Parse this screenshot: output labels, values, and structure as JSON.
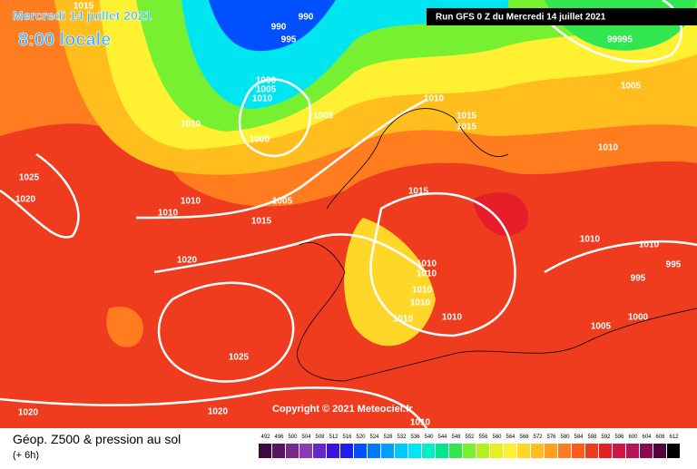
{
  "header": {
    "date": "Mercredi 14 juillet 2021",
    "time": "8:00 locale",
    "run": "Run GFS 0 Z du Mercredi 14 juillet 2021"
  },
  "isobar_labels": [
    1015,
    990,
    990,
    995,
    99995,
    1000,
    1005,
    1010,
    1005,
    1005,
    1010,
    1015,
    1015,
    1010,
    1000,
    1010,
    1025,
    1020,
    1015,
    1010,
    1010,
    1005,
    1015,
    1010,
    1010,
    1020,
    995,
    1010,
    1010,
    995,
    1010,
    1010,
    1010,
    1010,
    1000,
    1005,
    1025,
    1020,
    1020,
    1010
  ],
  "copyright": "Copyright © 2021 Meteociel.fr",
  "footer": {
    "title": "Géop. Z500 & pression au sol",
    "subtitle": "(+ 6h)"
  },
  "scale": {
    "values": [
      492,
      496,
      500,
      504,
      508,
      512,
      516,
      520,
      524,
      528,
      532,
      536,
      540,
      544,
      548,
      552,
      556,
      560,
      564,
      568,
      572,
      576,
      580,
      584,
      588,
      592,
      596,
      600,
      604,
      608,
      612
    ],
    "colors": [
      "#3c0a3c",
      "#5a1464",
      "#78288c",
      "#8c3cb4",
      "#6428c8",
      "#3c14dc",
      "#1e1ef0",
      "#0050ff",
      "#0078ff",
      "#00a0ff",
      "#00c8ff",
      "#00e6f0",
      "#00f0c8",
      "#00e68c",
      "#32e650",
      "#78f032",
      "#b4f01e",
      "#e6f01e",
      "#fff032",
      "#ffd728",
      "#ffbe1e",
      "#ffa01e",
      "#ff7d1e",
      "#ff5a1e",
      "#f03c1e",
      "#e61e28",
      "#d21446",
      "#b4145a",
      "#8c0a50",
      "#50053c",
      "#000000"
    ]
  }
}
